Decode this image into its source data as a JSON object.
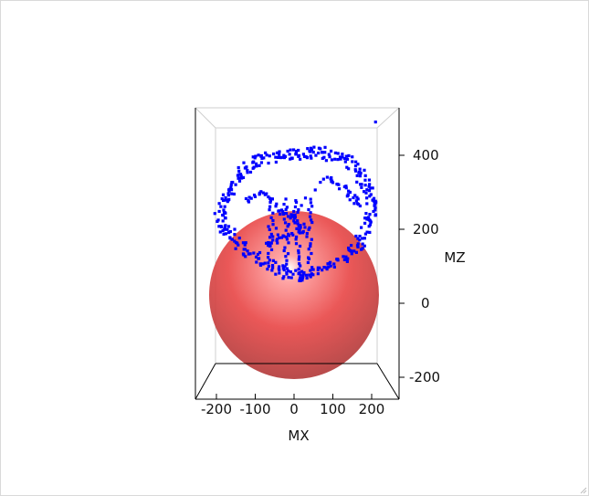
{
  "chart_data": {
    "type": "scatter",
    "title": "",
    "xlabel": "MX",
    "zlabel": "MZ",
    "xlim": [
      -250,
      250
    ],
    "zlim": [
      -250,
      500
    ],
    "x_ticks": [
      "-200",
      "-100",
      "0",
      "100",
      "200"
    ],
    "x_tick_values": [
      -200,
      -100,
      0,
      100,
      200
    ],
    "z_ticks": [
      "400",
      "200",
      "0",
      "-200"
    ],
    "z_tick_values": [
      400,
      200,
      0,
      -200
    ],
    "sphere": {
      "center": [
        0,
        0,
        0
      ],
      "radius": 230,
      "color": "#e84545",
      "opacity": 0.85
    },
    "series": [
      {
        "color": "#0000ff",
        "description_points": [
          {
            "x": -190,
            "z": 230
          },
          {
            "x": -180,
            "z": 280
          },
          {
            "x": -160,
            "z": 320
          },
          {
            "x": -130,
            "z": 360
          },
          {
            "x": -100,
            "z": 380
          },
          {
            "x": -60,
            "z": 395
          },
          {
            "x": -20,
            "z": 400
          },
          {
            "x": 20,
            "z": 405
          },
          {
            "x": 60,
            "z": 410
          },
          {
            "x": 100,
            "z": 400
          },
          {
            "x": 140,
            "z": 380
          },
          {
            "x": 170,
            "z": 350
          },
          {
            "x": 190,
            "z": 310
          },
          {
            "x": 200,
            "z": 270
          },
          {
            "x": 195,
            "z": 230
          },
          {
            "x": 180,
            "z": 180
          },
          {
            "x": 150,
            "z": 140
          },
          {
            "x": 110,
            "z": 110
          },
          {
            "x": 60,
            "z": 90
          },
          {
            "x": 20,
            "z": 70
          },
          {
            "x": -20,
            "z": 80
          },
          {
            "x": -60,
            "z": 100
          },
          {
            "x": -110,
            "z": 130
          },
          {
            "x": -150,
            "z": 170
          },
          {
            "x": -180,
            "z": 200
          },
          {
            "x": -120,
            "z": 280
          },
          {
            "x": -80,
            "z": 300
          },
          {
            "x": -40,
            "z": 250
          },
          {
            "x": 0,
            "z": 230
          },
          {
            "x": 30,
            "z": 200
          },
          {
            "x": -30,
            "z": 180
          },
          {
            "x": -70,
            "z": 160
          },
          {
            "x": 80,
            "z": 340
          },
          {
            "x": 120,
            "z": 320
          },
          {
            "x": 150,
            "z": 290
          },
          {
            "x": 170,
            "z": 260
          },
          {
            "x": 210,
            "z": 490
          }
        ]
      }
    ]
  }
}
